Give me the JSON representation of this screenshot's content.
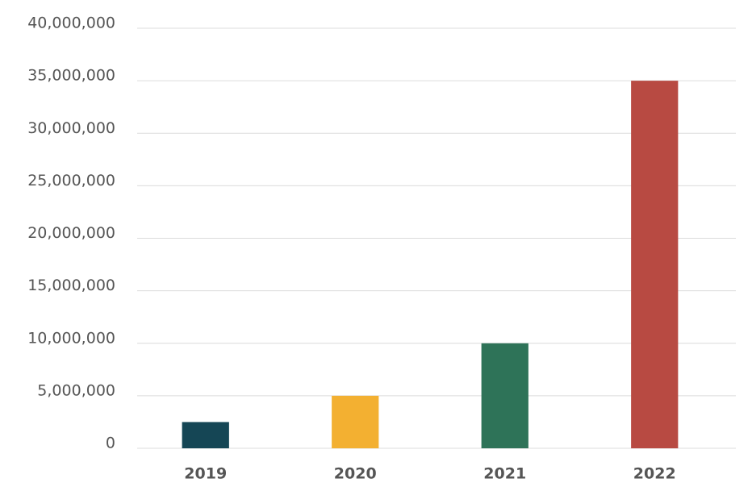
{
  "chart_data": {
    "type": "bar",
    "categories": [
      "2019",
      "2020",
      "2021",
      "2022"
    ],
    "values": [
      2500000,
      5000000,
      10000000,
      35000000
    ],
    "colors": [
      "#154655",
      "#f3b031",
      "#2e7358",
      "#b84a42"
    ],
    "ylim": [
      0,
      40000000
    ],
    "yticks": [
      0,
      {
        "value": 5000000,
        "label": "5,000,000"
      },
      {
        "value": 10000000,
        "label": "10,000,000"
      },
      {
        "value": 15000000,
        "label": "15,000,000"
      },
      {
        "value": 20000000,
        "label": "20,000,000"
      },
      {
        "value": 25000000,
        "label": "25,000,000"
      },
      {
        "value": 30000000,
        "label": "30,000,000"
      },
      {
        "value": 35000000,
        "label": "35,000,000"
      },
      {
        "value": 40000000,
        "label": "40,000,000"
      }
    ],
    "grid": true
  }
}
